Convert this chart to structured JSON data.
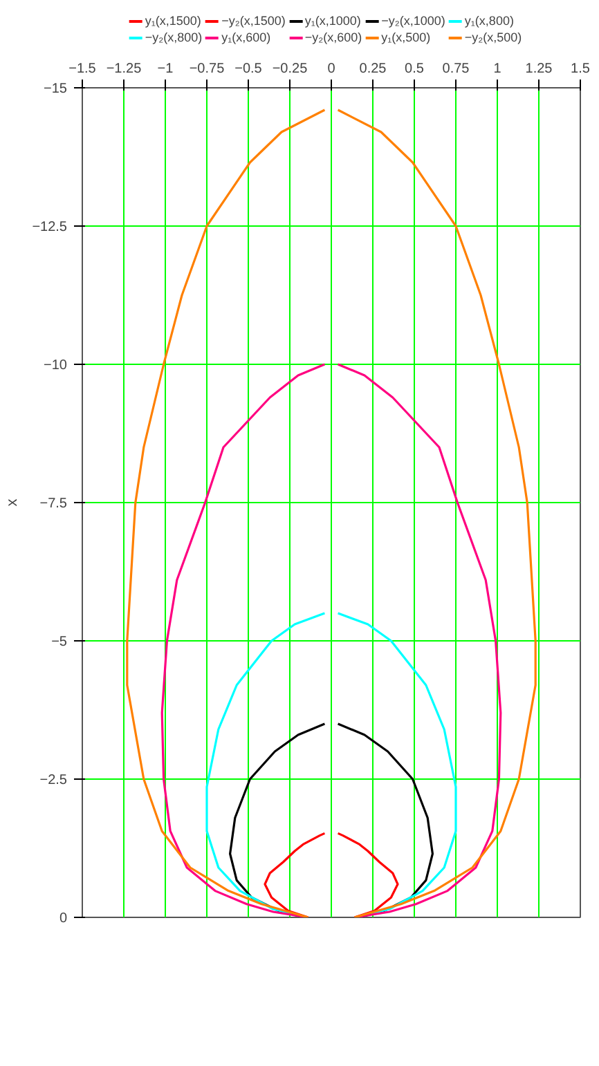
{
  "chart_data": {
    "type": "line",
    "ylabel": "x",
    "ylim": [
      0,
      -15
    ],
    "yticks": [
      -15,
      -12.5,
      -10,
      -7.5,
      -5,
      -2.5,
      0
    ],
    "xlim": [
      -1.5,
      1.5
    ],
    "xticks": [
      -1.5,
      -1.25,
      -1,
      -0.75,
      -0.5,
      -0.25,
      0,
      0.25,
      0.5,
      0.75,
      1,
      1.25,
      1.5
    ],
    "grid": true,
    "legend": "top",
    "line_style": "solid",
    "marker": "none",
    "series": [
      {
        "name": "y₁(x,1500)",
        "color": "#ff0000",
        "values": [
          0,
          -0.12,
          -0.36,
          -0.6,
          -0.8,
          -1.0,
          -1.2,
          -1.32,
          -1.48,
          -1.52
        ],
        "x": [
          0.14,
          0.26,
          0.36,
          0.4,
          0.37,
          0.29,
          0.22,
          0.17,
          0.07,
          0.04
        ]
      },
      {
        "name": "−y₂(x,1500)",
        "color": "#ff0000",
        "values": [
          0,
          -0.12,
          -0.36,
          -0.6,
          -0.8,
          -1.0,
          -1.2,
          -1.32,
          -1.48,
          -1.52
        ],
        "x": [
          -0.14,
          -0.26,
          -0.36,
          -0.4,
          -0.37,
          -0.29,
          -0.22,
          -0.17,
          -0.07,
          -0.04
        ]
      },
      {
        "name": "y₁(x,1000)",
        "color": "#000000",
        "values": [
          0,
          -0.12,
          -0.36,
          -0.67,
          -1.15,
          -1.8,
          -2.5,
          -3.0,
          -3.3,
          -3.5
        ],
        "x": [
          0.16,
          0.32,
          0.48,
          0.57,
          0.61,
          0.58,
          0.49,
          0.34,
          0.2,
          0.04
        ]
      },
      {
        "name": "−y₂(x,1000)",
        "color": "#000000",
        "values": [
          0,
          -0.12,
          -0.36,
          -0.67,
          -1.15,
          -1.8,
          -2.5,
          -3.0,
          -3.3,
          -3.5
        ],
        "x": [
          -0.16,
          -0.32,
          -0.48,
          -0.57,
          -0.61,
          -0.58,
          -0.49,
          -0.34,
          -0.2,
          -0.04
        ]
      },
      {
        "name": "y₁(x,800)",
        "color": "#00ffff",
        "values": [
          0,
          -0.15,
          -0.48,
          -0.9,
          -1.56,
          -2.36,
          -3.4,
          -4.2,
          -5.0,
          -5.3,
          -5.5
        ],
        "x": [
          0.15,
          0.35,
          0.55,
          0.68,
          0.75,
          0.75,
          0.68,
          0.57,
          0.36,
          0.22,
          0.04
        ]
      },
      {
        "name": "−y₂(x,800)",
        "color": "#00ffff",
        "values": [
          0,
          -0.15,
          -0.48,
          -0.9,
          -1.56,
          -2.36,
          -3.4,
          -4.2,
          -5.0,
          -5.3,
          -5.5
        ],
        "x": [
          -0.15,
          -0.35,
          -0.55,
          -0.68,
          -0.75,
          -0.75,
          -0.68,
          -0.57,
          -0.36,
          -0.22,
          -0.04
        ]
      },
      {
        "name": "y₁(x,600)",
        "color": "#ff0080",
        "values": [
          0,
          -0.1,
          -0.24,
          -0.48,
          -0.9,
          -1.56,
          -2.5,
          -3.7,
          -5.0,
          -6.1,
          -7.5,
          -8.5,
          -9.4,
          -9.8,
          -10
        ],
        "x": [
          0.14,
          0.35,
          0.51,
          0.7,
          0.87,
          0.97,
          1.01,
          1.02,
          0.99,
          0.93,
          0.76,
          0.65,
          0.37,
          0.2,
          0.04
        ]
      },
      {
        "name": "−y₂(x,600)",
        "color": "#ff0080",
        "values": [
          0,
          -0.1,
          -0.24,
          -0.48,
          -0.9,
          -1.56,
          -2.5,
          -3.7,
          -5.0,
          -6.1,
          -7.5,
          -8.5,
          -9.4,
          -9.8,
          -10
        ],
        "x": [
          -0.14,
          -0.35,
          -0.51,
          -0.7,
          -0.87,
          -0.97,
          -1.01,
          -1.02,
          -0.99,
          -0.93,
          -0.76,
          -0.65,
          -0.37,
          -0.2,
          -0.04
        ]
      },
      {
        "name": "y₁(x,500)",
        "color": "#ff8000",
        "values": [
          0,
          -0.24,
          -0.48,
          -0.9,
          -1.56,
          -2.5,
          -4.2,
          -5.0,
          -7.5,
          -8.5,
          -10,
          -11.25,
          -12.5,
          -13.65,
          -14.2,
          -14.6
        ],
        "x": [
          0.14,
          0.42,
          0.62,
          0.85,
          1.02,
          1.13,
          1.23,
          1.23,
          1.18,
          1.13,
          1.01,
          0.9,
          0.75,
          0.49,
          0.3,
          0.04
        ]
      },
      {
        "name": "−y₂(x,500)",
        "color": "#ff8000",
        "values": [
          0,
          -0.24,
          -0.48,
          -0.9,
          -1.56,
          -2.5,
          -4.2,
          -5.0,
          -7.5,
          -8.5,
          -10,
          -11.25,
          -12.5,
          -13.65,
          -14.2,
          -14.6
        ],
        "x": [
          -0.14,
          -0.42,
          -0.62,
          -0.85,
          -1.02,
          -1.13,
          -1.23,
          -1.23,
          -1.18,
          -1.13,
          -1.01,
          -0.9,
          -0.75,
          -0.49,
          -0.3,
          -0.04
        ]
      }
    ]
  }
}
